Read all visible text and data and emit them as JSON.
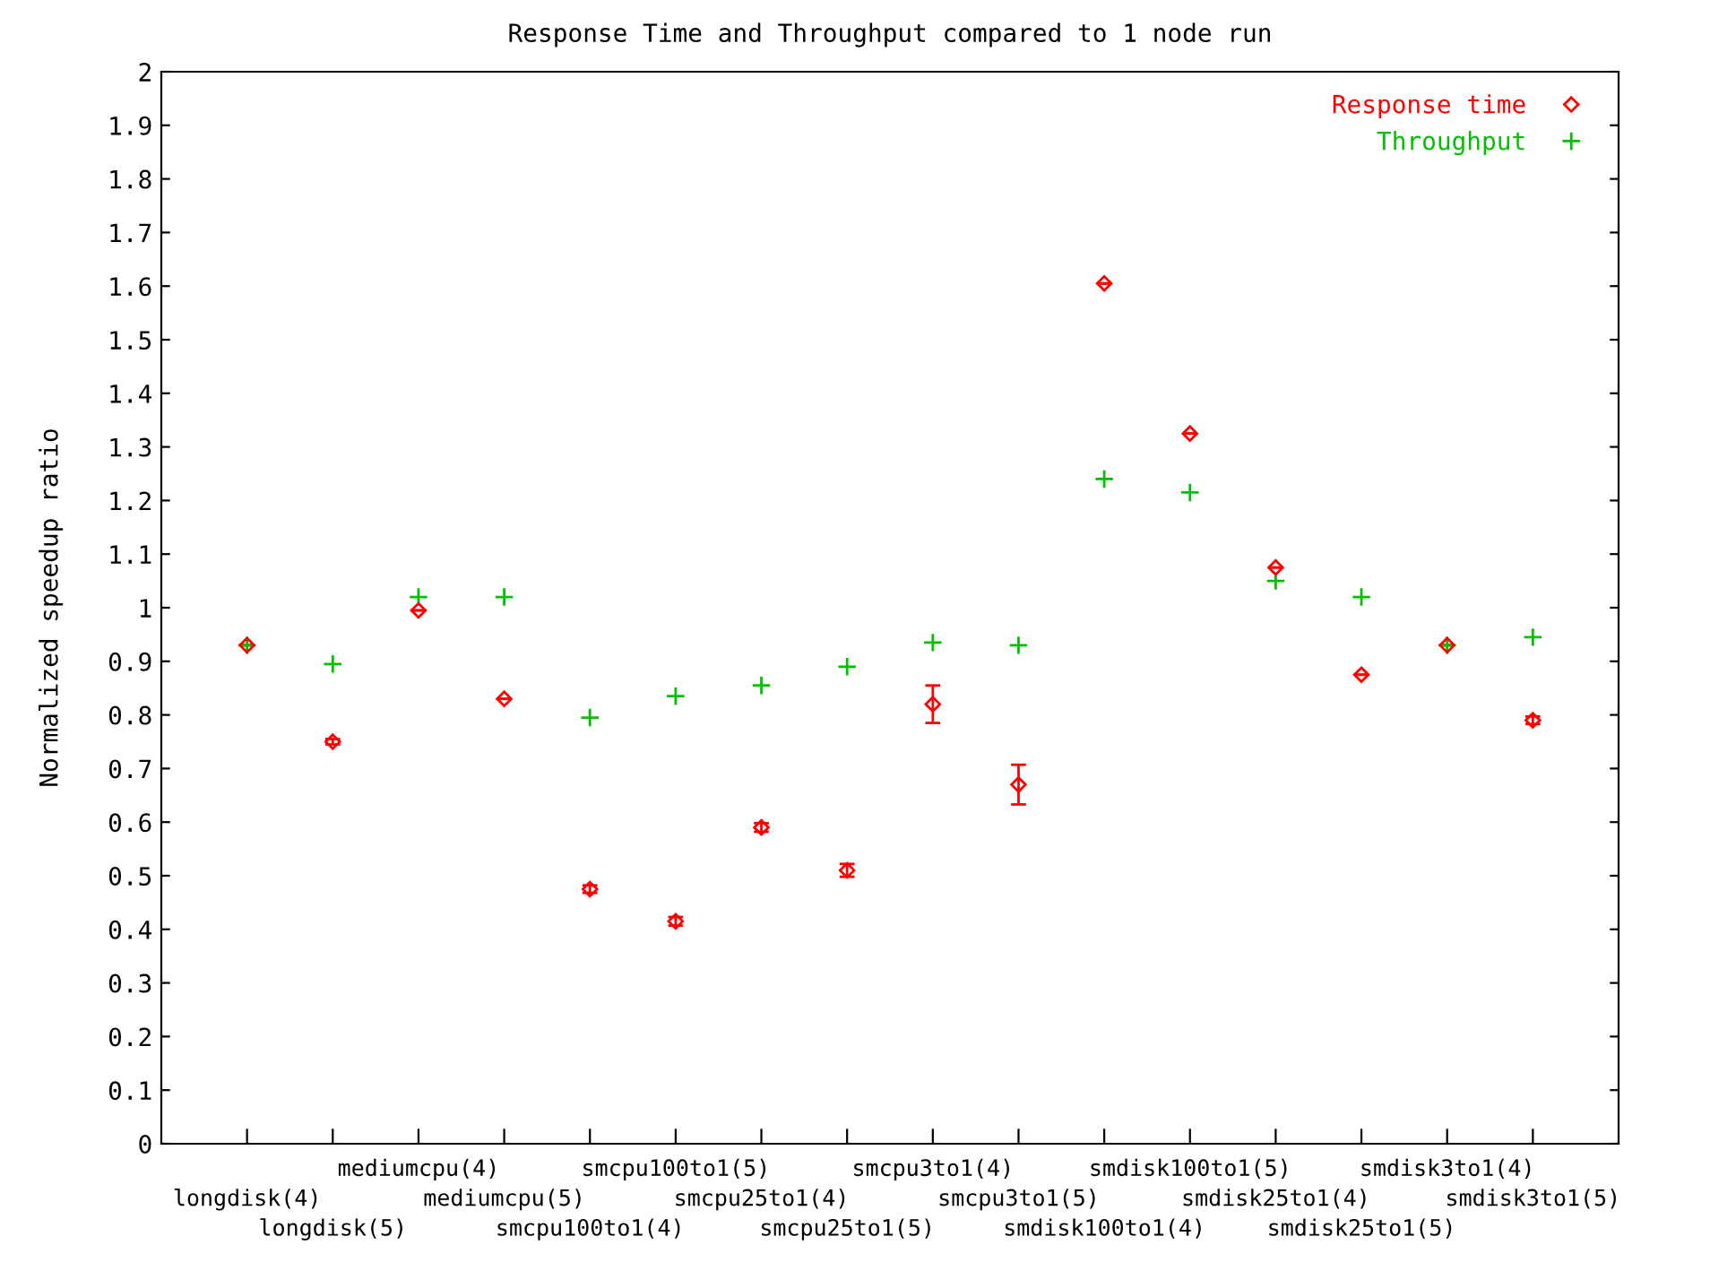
{
  "chart_data": {
    "type": "scatter",
    "title": "Response Time and Throughput compared to 1 node run",
    "ylabel": "Normalized speedup ratio",
    "categories": [
      "longdisk(4)",
      "longdisk(5)",
      "mediumcpu(4)",
      "mediumcpu(5)",
      "smcpu100to1(4)",
      "smcpu100to1(5)",
      "smcpu25to1(4)",
      "smcpu25to1(5)",
      "smcpu3to1(4)",
      "smcpu3to1(5)",
      "smdisk100to1(4)",
      "smdisk100to1(5)",
      "smdisk25to1(4)",
      "smdisk25to1(5)",
      "smdisk3to1(4)",
      "smdisk3to1(5)"
    ],
    "series": [
      {
        "name": "Response time",
        "color": "#ff0000",
        "marker": "diamond",
        "values": [
          0.93,
          0.75,
          0.995,
          0.83,
          0.475,
          0.415,
          0.59,
          0.51,
          0.82,
          0.67,
          1.605,
          1.325,
          1.075,
          0.875,
          0.93,
          0.79
        ],
        "errors": [
          null,
          0.005,
          null,
          null,
          0.007,
          0.008,
          0.008,
          0.012,
          0.035,
          0.037,
          null,
          null,
          null,
          null,
          null,
          0.007
        ]
      },
      {
        "name": "Throughput",
        "color": "#00c000",
        "marker": "cross",
        "values": [
          0.93,
          0.895,
          1.02,
          1.02,
          0.795,
          0.835,
          0.855,
          0.89,
          0.935,
          0.93,
          1.24,
          1.215,
          1.05,
          1.02,
          0.93,
          0.945
        ]
      }
    ],
    "ylim": [
      0,
      2
    ],
    "yticks": [
      0,
      0.1,
      0.2,
      0.3,
      0.4,
      0.5,
      0.6,
      0.7,
      0.8,
      0.9,
      1,
      1.1,
      1.2,
      1.3,
      1.4,
      1.5,
      1.6,
      1.7,
      1.8,
      1.9,
      2
    ],
    "grid": false,
    "legend": "top right"
  }
}
